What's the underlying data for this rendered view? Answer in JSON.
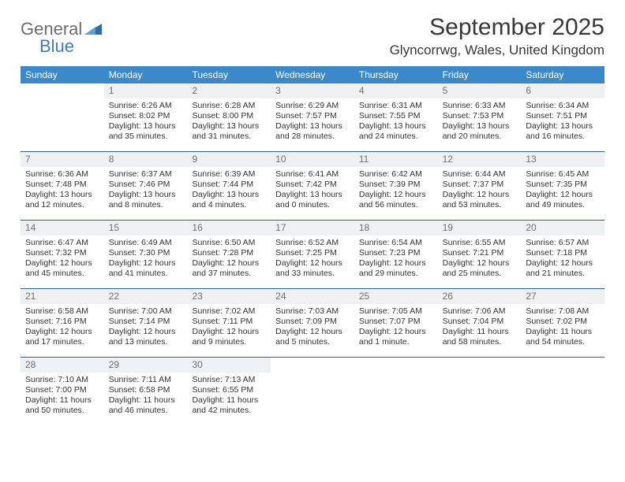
{
  "logo": {
    "textGeneral": "General",
    "textBlue": "Blue"
  },
  "header": {
    "monthTitle": "September 2025",
    "location": "Glyncorrwg, Wales, United Kingdom"
  },
  "style": {
    "headerBg": "#3b89c9",
    "headerText": "#ffffff",
    "dayBarBg": "#eef0f1",
    "dayBarText": "#707070",
    "weekBorder": "#2f5e8a",
    "bodyText": "#323232",
    "logoGray": "#6b6b6b",
    "logoBlue": "#3b7bbf"
  },
  "daysOfWeek": [
    "Sunday",
    "Monday",
    "Tuesday",
    "Wednesday",
    "Thursday",
    "Friday",
    "Saturday"
  ],
  "weeks": [
    [
      {
        "n": "",
        "sunrise": "",
        "sunset": "",
        "daylight": ""
      },
      {
        "n": "1",
        "sunrise": "Sunrise: 6:26 AM",
        "sunset": "Sunset: 8:02 PM",
        "daylight": "Daylight: 13 hours and 35 minutes."
      },
      {
        "n": "2",
        "sunrise": "Sunrise: 6:28 AM",
        "sunset": "Sunset: 8:00 PM",
        "daylight": "Daylight: 13 hours and 31 minutes."
      },
      {
        "n": "3",
        "sunrise": "Sunrise: 6:29 AM",
        "sunset": "Sunset: 7:57 PM",
        "daylight": "Daylight: 13 hours and 28 minutes."
      },
      {
        "n": "4",
        "sunrise": "Sunrise: 6:31 AM",
        "sunset": "Sunset: 7:55 PM",
        "daylight": "Daylight: 13 hours and 24 minutes."
      },
      {
        "n": "5",
        "sunrise": "Sunrise: 6:33 AM",
        "sunset": "Sunset: 7:53 PM",
        "daylight": "Daylight: 13 hours and 20 minutes."
      },
      {
        "n": "6",
        "sunrise": "Sunrise: 6:34 AM",
        "sunset": "Sunset: 7:51 PM",
        "daylight": "Daylight: 13 hours and 16 minutes."
      }
    ],
    [
      {
        "n": "7",
        "sunrise": "Sunrise: 6:36 AM",
        "sunset": "Sunset: 7:48 PM",
        "daylight": "Daylight: 13 hours and 12 minutes."
      },
      {
        "n": "8",
        "sunrise": "Sunrise: 6:37 AM",
        "sunset": "Sunset: 7:46 PM",
        "daylight": "Daylight: 13 hours and 8 minutes."
      },
      {
        "n": "9",
        "sunrise": "Sunrise: 6:39 AM",
        "sunset": "Sunset: 7:44 PM",
        "daylight": "Daylight: 13 hours and 4 minutes."
      },
      {
        "n": "10",
        "sunrise": "Sunrise: 6:41 AM",
        "sunset": "Sunset: 7:42 PM",
        "daylight": "Daylight: 13 hours and 0 minutes."
      },
      {
        "n": "11",
        "sunrise": "Sunrise: 6:42 AM",
        "sunset": "Sunset: 7:39 PM",
        "daylight": "Daylight: 12 hours and 56 minutes."
      },
      {
        "n": "12",
        "sunrise": "Sunrise: 6:44 AM",
        "sunset": "Sunset: 7:37 PM",
        "daylight": "Daylight: 12 hours and 53 minutes."
      },
      {
        "n": "13",
        "sunrise": "Sunrise: 6:45 AM",
        "sunset": "Sunset: 7:35 PM",
        "daylight": "Daylight: 12 hours and 49 minutes."
      }
    ],
    [
      {
        "n": "14",
        "sunrise": "Sunrise: 6:47 AM",
        "sunset": "Sunset: 7:32 PM",
        "daylight": "Daylight: 12 hours and 45 minutes."
      },
      {
        "n": "15",
        "sunrise": "Sunrise: 6:49 AM",
        "sunset": "Sunset: 7:30 PM",
        "daylight": "Daylight: 12 hours and 41 minutes."
      },
      {
        "n": "16",
        "sunrise": "Sunrise: 6:50 AM",
        "sunset": "Sunset: 7:28 PM",
        "daylight": "Daylight: 12 hours and 37 minutes."
      },
      {
        "n": "17",
        "sunrise": "Sunrise: 6:52 AM",
        "sunset": "Sunset: 7:25 PM",
        "daylight": "Daylight: 12 hours and 33 minutes."
      },
      {
        "n": "18",
        "sunrise": "Sunrise: 6:54 AM",
        "sunset": "Sunset: 7:23 PM",
        "daylight": "Daylight: 12 hours and 29 minutes."
      },
      {
        "n": "19",
        "sunrise": "Sunrise: 6:55 AM",
        "sunset": "Sunset: 7:21 PM",
        "daylight": "Daylight: 12 hours and 25 minutes."
      },
      {
        "n": "20",
        "sunrise": "Sunrise: 6:57 AM",
        "sunset": "Sunset: 7:18 PM",
        "daylight": "Daylight: 12 hours and 21 minutes."
      }
    ],
    [
      {
        "n": "21",
        "sunrise": "Sunrise: 6:58 AM",
        "sunset": "Sunset: 7:16 PM",
        "daylight": "Daylight: 12 hours and 17 minutes."
      },
      {
        "n": "22",
        "sunrise": "Sunrise: 7:00 AM",
        "sunset": "Sunset: 7:14 PM",
        "daylight": "Daylight: 12 hours and 13 minutes."
      },
      {
        "n": "23",
        "sunrise": "Sunrise: 7:02 AM",
        "sunset": "Sunset: 7:11 PM",
        "daylight": "Daylight: 12 hours and 9 minutes."
      },
      {
        "n": "24",
        "sunrise": "Sunrise: 7:03 AM",
        "sunset": "Sunset: 7:09 PM",
        "daylight": "Daylight: 12 hours and 5 minutes."
      },
      {
        "n": "25",
        "sunrise": "Sunrise: 7:05 AM",
        "sunset": "Sunset: 7:07 PM",
        "daylight": "Daylight: 12 hours and 1 minute."
      },
      {
        "n": "26",
        "sunrise": "Sunrise: 7:06 AM",
        "sunset": "Sunset: 7:04 PM",
        "daylight": "Daylight: 11 hours and 58 minutes."
      },
      {
        "n": "27",
        "sunrise": "Sunrise: 7:08 AM",
        "sunset": "Sunset: 7:02 PM",
        "daylight": "Daylight: 11 hours and 54 minutes."
      }
    ],
    [
      {
        "n": "28",
        "sunrise": "Sunrise: 7:10 AM",
        "sunset": "Sunset: 7:00 PM",
        "daylight": "Daylight: 11 hours and 50 minutes."
      },
      {
        "n": "29",
        "sunrise": "Sunrise: 7:11 AM",
        "sunset": "Sunset: 6:58 PM",
        "daylight": "Daylight: 11 hours and 46 minutes."
      },
      {
        "n": "30",
        "sunrise": "Sunrise: 7:13 AM",
        "sunset": "Sunset: 6:55 PM",
        "daylight": "Daylight: 11 hours and 42 minutes."
      },
      {
        "n": "",
        "sunrise": "",
        "sunset": "",
        "daylight": ""
      },
      {
        "n": "",
        "sunrise": "",
        "sunset": "",
        "daylight": ""
      },
      {
        "n": "",
        "sunrise": "",
        "sunset": "",
        "daylight": ""
      },
      {
        "n": "",
        "sunrise": "",
        "sunset": "",
        "daylight": ""
      }
    ]
  ]
}
